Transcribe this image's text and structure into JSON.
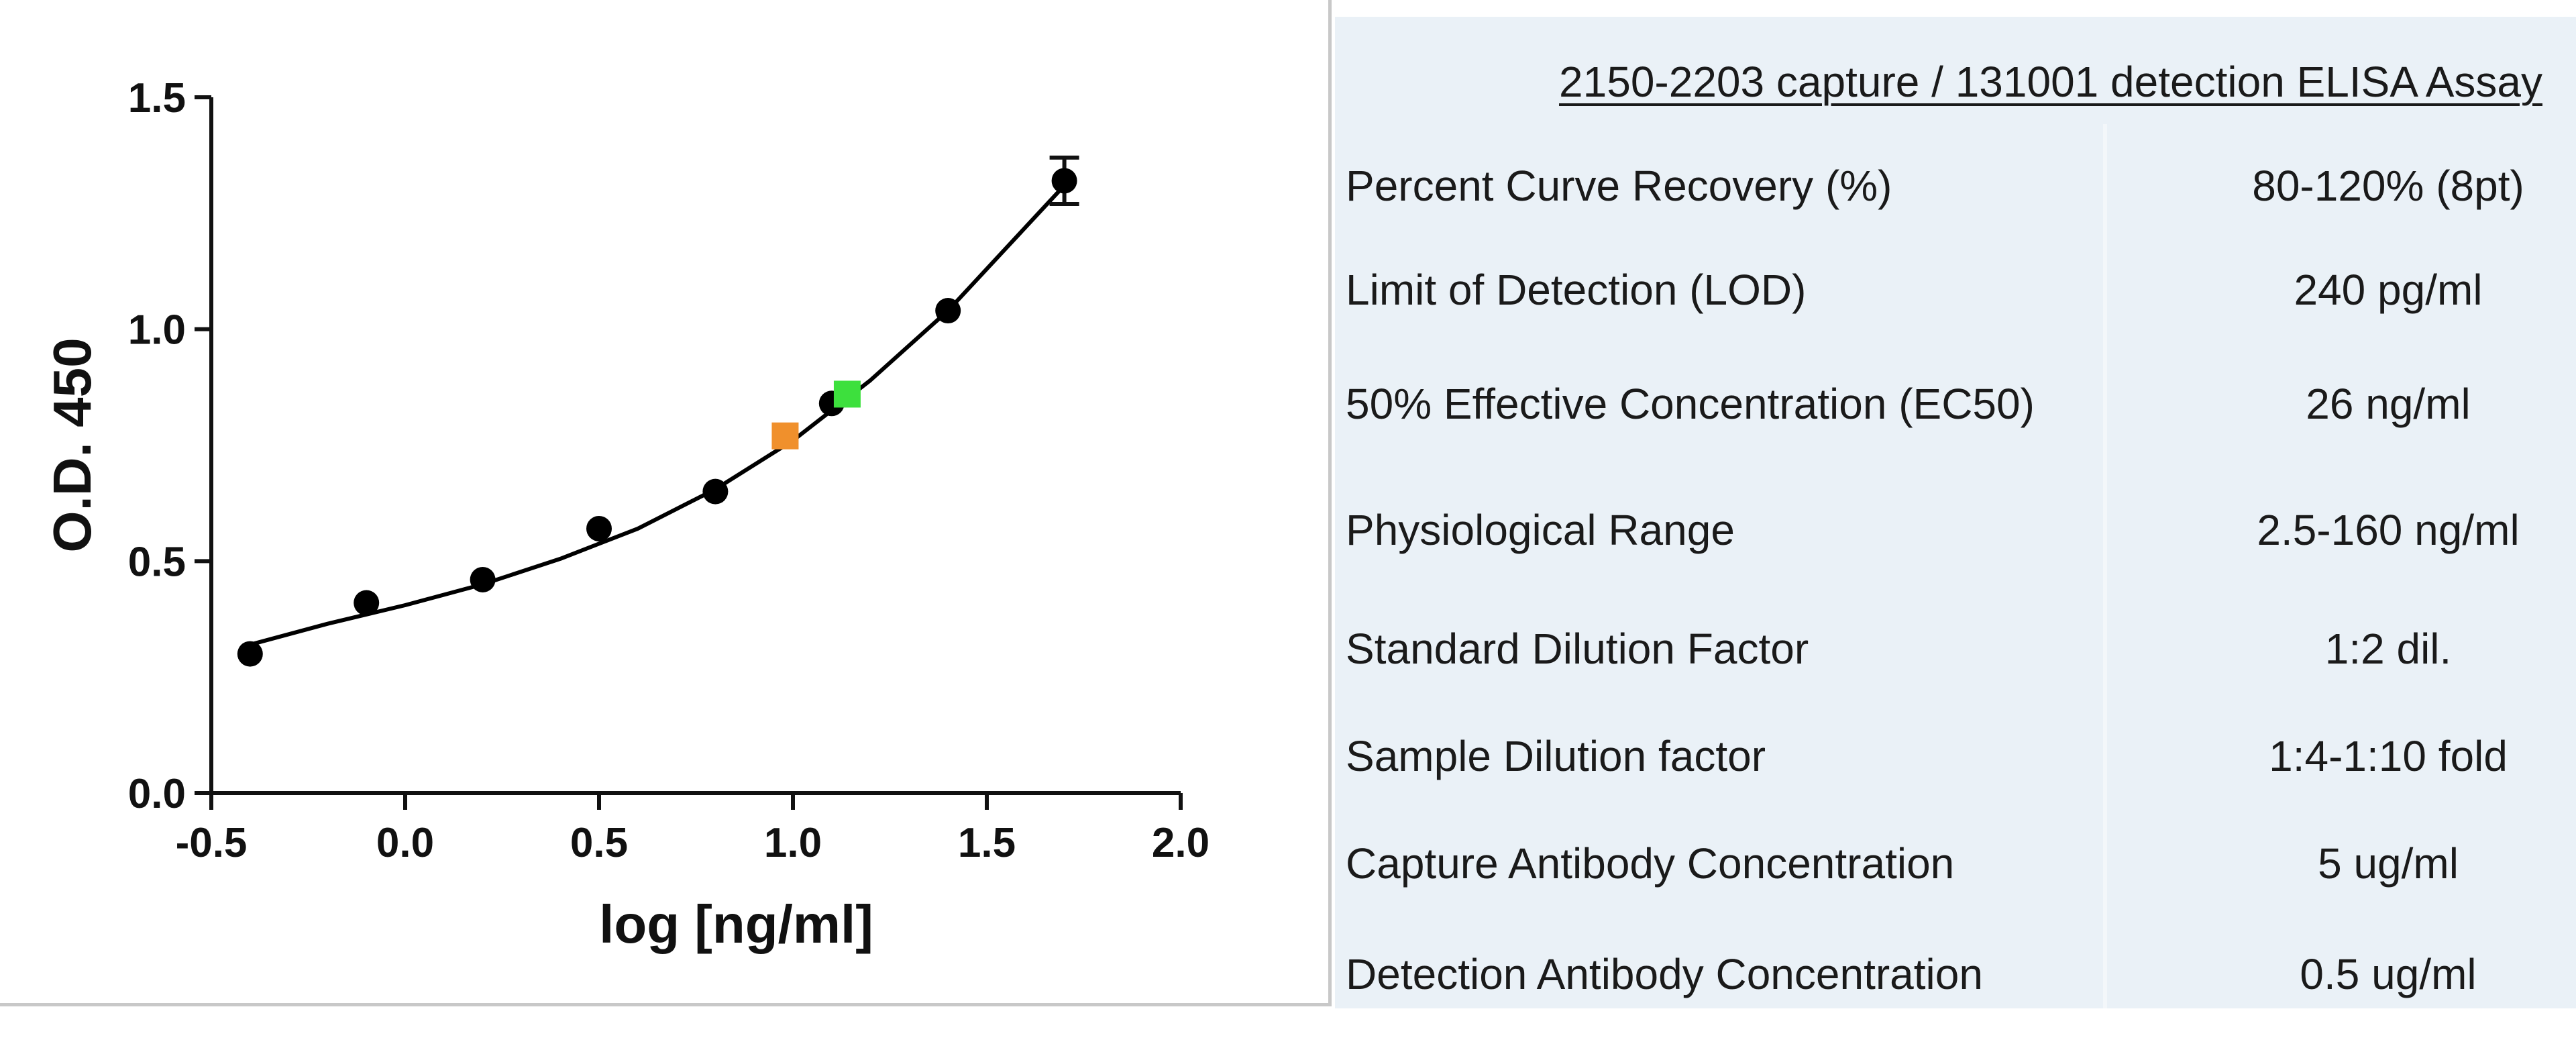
{
  "chart_data": {
    "type": "scatter",
    "xlabel": "log [ng/ml]",
    "ylabel": "O.D. 450",
    "xlim": [
      -0.5,
      2.0
    ],
    "ylim": [
      0.0,
      1.5
    ],
    "xticks": [
      "-0.5",
      "0.0",
      "0.5",
      "1.0",
      "1.5",
      "2.0"
    ],
    "yticks": [
      "0.0",
      "0.5",
      "1.0",
      "1.5"
    ],
    "grid": false,
    "series": [
      {
        "marker": "circle",
        "color": "#000000",
        "points": [
          {
            "x": -0.4,
            "y": 0.3
          },
          {
            "x": -0.1,
            "y": 0.41
          },
          {
            "x": 0.2,
            "y": 0.46
          },
          {
            "x": 0.5,
            "y": 0.57
          },
          {
            "x": 0.8,
            "y": 0.65
          },
          {
            "x": 1.1,
            "y": 0.84
          },
          {
            "x": 1.4,
            "y": 1.04
          },
          {
            "x": 1.7,
            "y": 1.32,
            "err": 0.05
          }
        ]
      }
    ],
    "fit_curve": {
      "color": "#000000",
      "x": [
        -0.4,
        -0.2,
        0.0,
        0.2,
        0.4,
        0.6,
        0.8,
        1.0,
        1.2,
        1.4,
        1.6,
        1.7
      ],
      "y": [
        0.32,
        0.365,
        0.405,
        0.45,
        0.505,
        0.57,
        0.655,
        0.76,
        0.89,
        1.04,
        1.22,
        1.31
      ]
    },
    "highlight_points": [
      {
        "x": 0.98,
        "y": 0.77,
        "color": "#f0902c"
      },
      {
        "x": 1.14,
        "y": 0.86,
        "color": "#3de03d"
      }
    ]
  },
  "table": {
    "title": "2150-2203 capture / 131001 detection ELISA Assay",
    "rows": [
      {
        "label": "Percent Curve Recovery (%)",
        "value": "80-120% (8pt)"
      },
      {
        "label": "Limit of Detection (LOD)",
        "value": "240 pg/ml"
      },
      {
        "label": "50% Effective Concentration (EC50)",
        "value": "26 ng/ml"
      },
      {
        "label": "Physiological Range",
        "value": "2.5-160 ng/ml"
      },
      {
        "label": "Standard Dilution Factor",
        "value": "1:2 dil."
      },
      {
        "label": "Sample Dilution factor",
        "value": "1:4-1:10 fold"
      },
      {
        "label": "Capture Antibody Concentration",
        "value": "5 ug/ml"
      },
      {
        "label": "Detection Antibody Concentration",
        "value": "0.5 ug/ml"
      }
    ]
  }
}
